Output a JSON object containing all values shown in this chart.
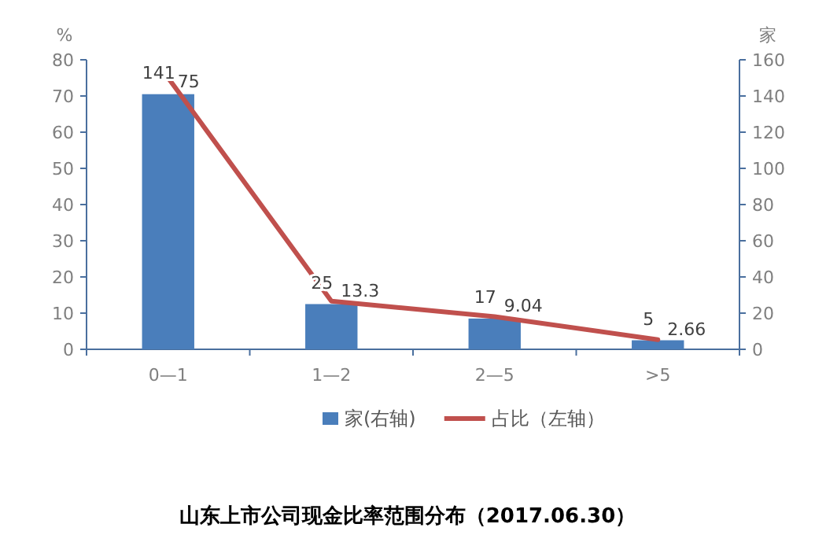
{
  "chart_data": {
    "type": "bar",
    "title": "山东上市公司现金比率范围分布（2017.06.30）",
    "ylabel": "%",
    "y2label": "家",
    "categories": [
      "0—1",
      "1—2",
      "2—5",
      ">5"
    ],
    "series": [
      {
        "name": "家(右轴)",
        "axis": "y2",
        "color": "#4a7ebb",
        "values": [
          141,
          25,
          17,
          5
        ]
      },
      {
        "name": "占比（左轴）",
        "type": "line",
        "color": "#c0504d",
        "values": [
          75,
          13.3,
          9.04,
          2.66
        ]
      }
    ],
    "ylim": [
      0,
      80
    ],
    "yticks": [
      0,
      10,
      20,
      30,
      40,
      50,
      60,
      70,
      80
    ],
    "y2lim": [
      0,
      160
    ],
    "y2ticks": [
      0,
      20,
      40,
      60,
      80,
      100,
      120,
      140,
      160
    ],
    "data_labels": true,
    "legend": "bottom"
  }
}
